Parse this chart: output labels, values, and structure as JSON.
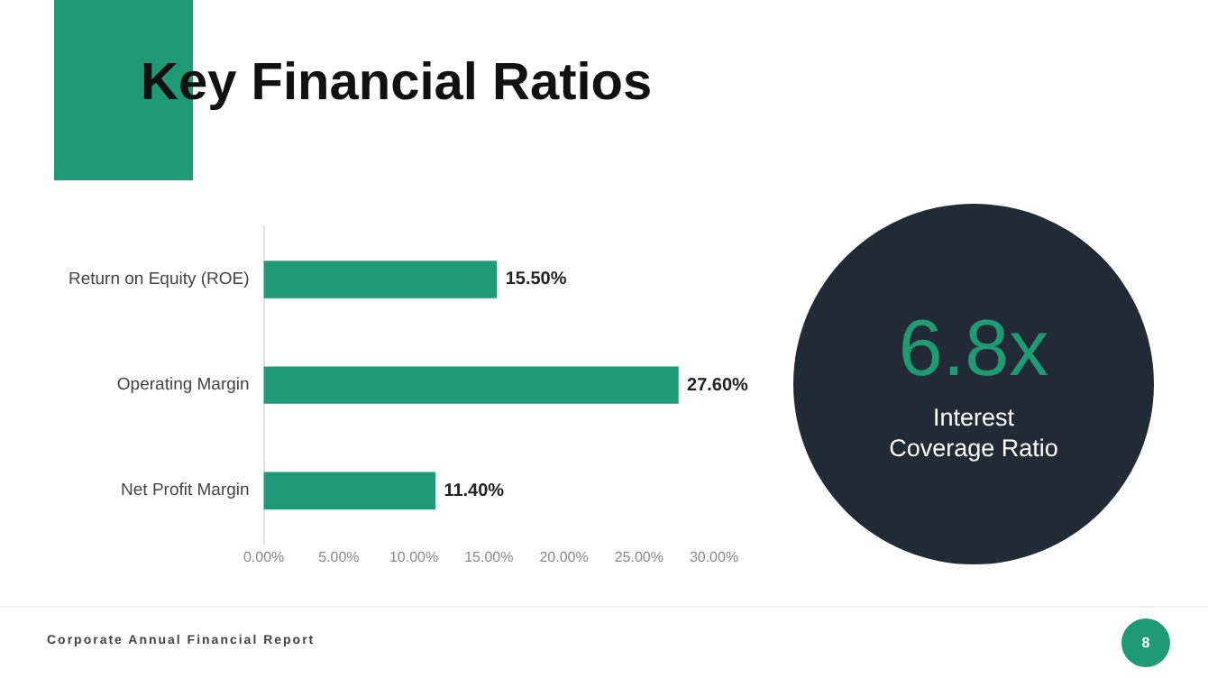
{
  "chart_data": [
    {
      "type": "bar",
      "title": "Key Financial Ratios",
      "orientation": "horizontal",
      "categories": [
        "Return on Equity (ROE)",
        "Operating Margin",
        "Net Profit Margin"
      ],
      "values": [
        15.5,
        27.6,
        11.4
      ],
      "color": "#1e9b74",
      "value_labels": [
        "15.50%",
        "27.60%",
        "11.40%"
      ],
      "xlim": [
        0,
        30
      ],
      "xticks": [
        {
          "value": 0,
          "label": "0.00%"
        },
        {
          "value": 5,
          "label": "5.00%"
        },
        {
          "value": 10,
          "label": "10.00%"
        },
        {
          "value": 15,
          "label": "15.00%"
        },
        {
          "value": 20,
          "label": "20.00%"
        },
        {
          "value": 25,
          "label": "25.00%"
        },
        {
          "value": 30,
          "label": "30.00%"
        }
      ],
      "grid": false,
      "legend": false,
      "annotations": [
        "Corporate Annual Financial Report",
        "8"
      ]
    },
    {
      "type": "other",
      "title": "6.8x",
      "subtitle": "Interest Coverage Ratio"
    }
  ]
}
